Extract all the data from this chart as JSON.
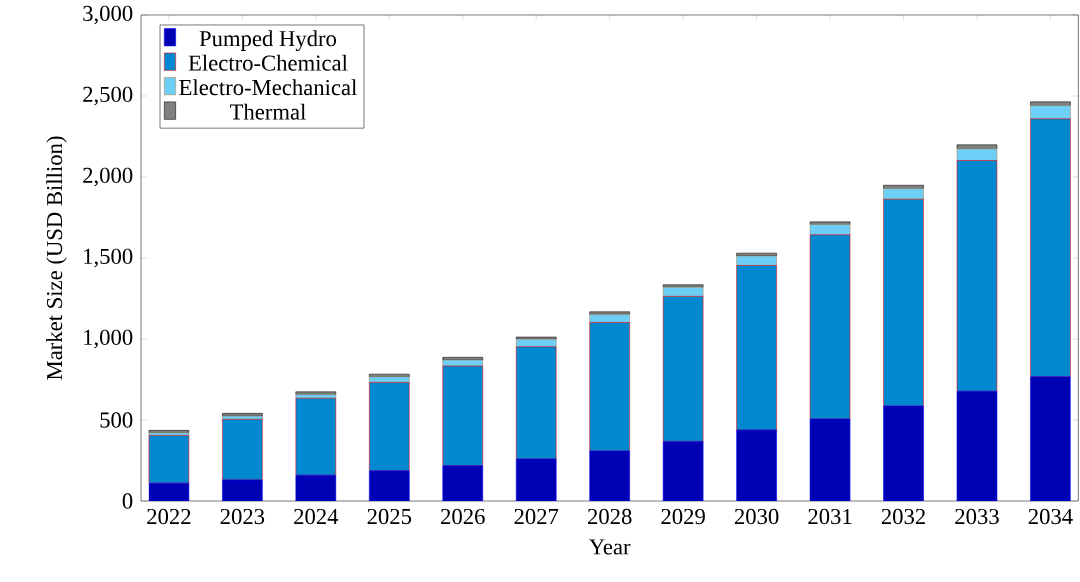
{
  "chart_data": {
    "type": "bar",
    "stacked": true,
    "xlabel": "Year",
    "ylabel": "Market Size (USD Billion)",
    "categories": [
      "2022",
      "2023",
      "2024",
      "2025",
      "2026",
      "2027",
      "2028",
      "2029",
      "2030",
      "2031",
      "2032",
      "2033",
      "2034"
    ],
    "series": [
      {
        "name": "Pumped Hydro",
        "color": "#0000b4",
        "values": [
          110,
          130,
          159,
          187,
          218,
          259,
          308,
          368,
          438,
          506,
          586,
          677,
          767
        ]
      },
      {
        "name": "Electro-Chemical",
        "color": "#0088d1",
        "values": [
          295,
          374,
          475,
          545,
          615,
          693,
          794,
          895,
          1016,
          1137,
          1277,
          1425,
          1592
        ]
      },
      {
        "name": "Electro-Mechanical",
        "color": "#6ecff6",
        "values": [
          16,
          20,
          24,
          35,
          37,
          47,
          50,
          57,
          59,
          64,
          66,
          72,
          82
        ]
      },
      {
        "name": "Thermal",
        "color": "#808080",
        "values": [
          15,
          17,
          16,
          16,
          17,
          13,
          16,
          15,
          17,
          16,
          20,
          25,
          23
        ]
      }
    ],
    "ylim": [
      0,
      3000
    ],
    "yticks": [
      0,
      500,
      {
        "value": 1000,
        "label": "1,000"
      },
      {
        "value": 1500,
        "label": "1,500"
      },
      {
        "value": 2000,
        "label": "2,000"
      },
      {
        "value": 2500,
        "label": "2,500"
      },
      {
        "value": 3000,
        "label": "3,000"
      }
    ],
    "legend": "top left"
  }
}
